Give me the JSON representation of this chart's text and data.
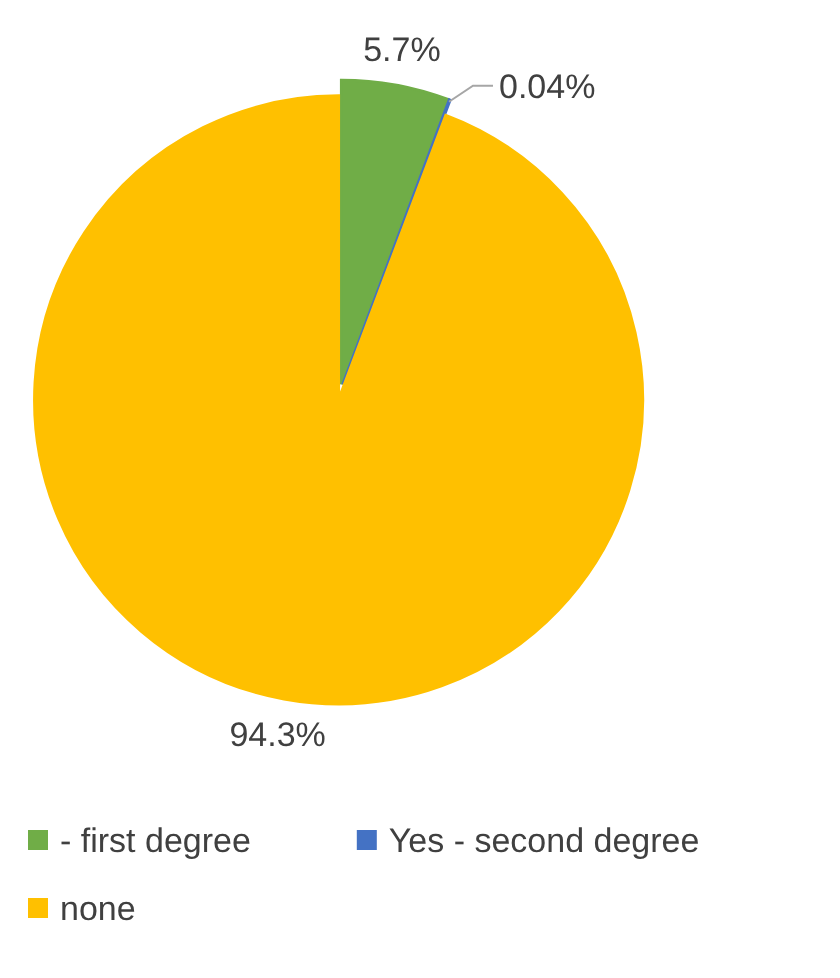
{
  "chart_data": {
    "type": "pie",
    "categories": [
      "- first degree",
      "Yes - second degree",
      "none"
    ],
    "values": [
      5.7,
      0.04,
      94.3
    ],
    "colors": [
      "#70ad47",
      "#4472c4",
      "#ffc000"
    ],
    "value_labels": [
      "5.7%",
      "0.04%",
      "94.3%"
    ],
    "legend": "bottom"
  }
}
